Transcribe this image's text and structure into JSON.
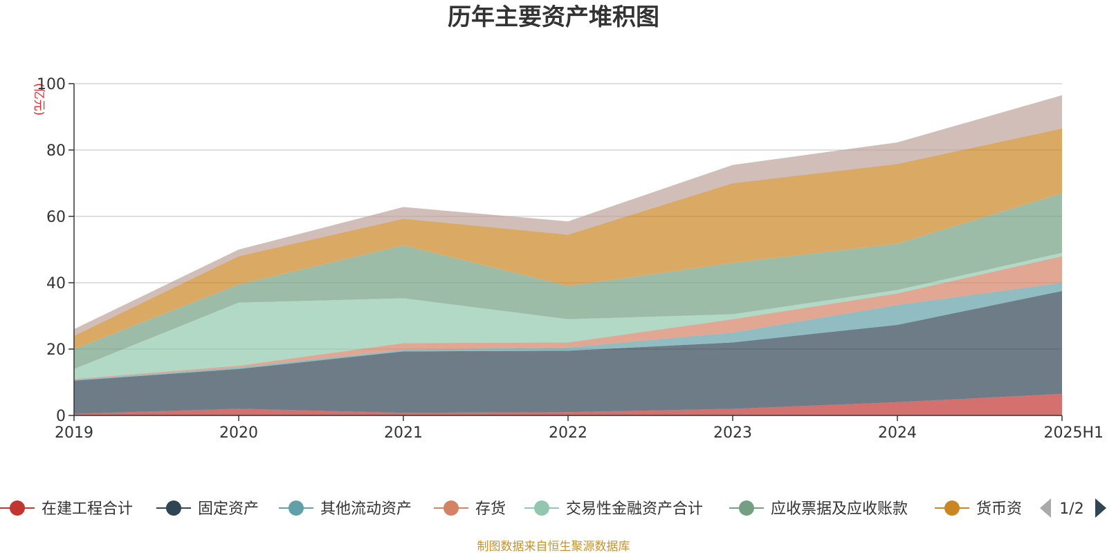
{
  "source_note": "制图数据来自恒生聚源数据库",
  "legend_pager": {
    "text": "1/2"
  },
  "chart_data": {
    "type": "area",
    "stacked": true,
    "title": "历年主要资产堆积图",
    "unit": "(亿元)",
    "categories": [
      "2019",
      "2020",
      "2021",
      "2022",
      "2023",
      "2024",
      "2025H1"
    ],
    "ylim": [
      0,
      100
    ],
    "yticks": [
      0,
      20,
      40,
      60,
      80,
      100
    ],
    "grid": true,
    "legend_position": "bottom",
    "series": [
      {
        "name": "在建工程合计",
        "color": "#c23531",
        "values": [
          0.5,
          2.0,
          0.8,
          1.0,
          2.0,
          4.0,
          6.5
        ]
      },
      {
        "name": "固定资产",
        "color": "#2f4554",
        "values": [
          10.0,
          12.0,
          18.5,
          18.5,
          20.0,
          23.3,
          31.0
        ]
      },
      {
        "name": "其他流动资产",
        "color": "#61a0a8",
        "values": [
          0.3,
          0.5,
          0.5,
          1.0,
          3.0,
          6.0,
          2.5
        ]
      },
      {
        "name": "存货",
        "color": "#d48265",
        "values": [
          0.2,
          0.5,
          2.0,
          1.5,
          4.0,
          3.5,
          8.0
        ]
      },
      {
        "name": "交易性金融资产合计",
        "color": "#91c7ae",
        "values": [
          3.0,
          19.0,
          13.5,
          7.0,
          1.5,
          1.0,
          1.0
        ]
      },
      {
        "name": "应收票据及应收账款",
        "color": "#749f83",
        "values": [
          6.0,
          5.5,
          16.0,
          10.0,
          15.5,
          14.0,
          18.0
        ]
      },
      {
        "name": "货币资",
        "color": "#ca8622",
        "values": [
          4.0,
          8.5,
          8.0,
          15.5,
          24.0,
          24.0,
          19.5
        ]
      },
      {
        "name": "",
        "color": "#bda29a",
        "values": [
          2.0,
          2.0,
          3.5,
          4.0,
          5.5,
          6.5,
          10.0
        ]
      }
    ]
  }
}
